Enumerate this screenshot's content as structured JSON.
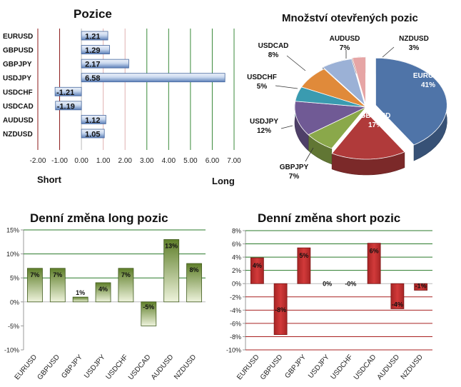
{
  "chart_data": [
    {
      "id": "pozice",
      "type": "bar",
      "orientation": "horizontal",
      "title": "Pozice",
      "categories": [
        "EURUSD",
        "GBPUSD",
        "GBPJPY",
        "USDJPY",
        "USDCHF",
        "USDCAD",
        "AUDUSD",
        "NZDUSD"
      ],
      "values": [
        1.21,
        1.29,
        2.17,
        6.58,
        -1.21,
        -1.19,
        1.12,
        1.05
      ],
      "data_labels": [
        "1.21",
        "1.29",
        "2.17",
        "6.58",
        "-1.21",
        "-1.19",
        "1.12",
        "1.05"
      ],
      "xlim": [
        -2,
        7
      ],
      "xticks": [
        "-2.00",
        "-1.00",
        "0.00",
        "1.00",
        "2.00",
        "3.00",
        "4.00",
        "5.00",
        "6.00",
        "7.00"
      ],
      "short_label": "Short",
      "long_label": "Long",
      "grid": "vertical",
      "colors": {
        "bar": "#5b7fb8",
        "bar_light": "#eef3fa",
        "neg_grid": "#8b1a1a",
        "pos_grid": "#3a8a3a",
        "light_grid": "#e0b0b0"
      }
    },
    {
      "id": "mnozstvi",
      "type": "pie",
      "title": "Množství otevřených pozic",
      "slices": [
        {
          "label": "EURUSD",
          "pct": "41%",
          "value": 41,
          "color": "#4f74a8"
        },
        {
          "label": "GBPUSD",
          "pct": "17%",
          "value": 17,
          "color": "#b03a3a"
        },
        {
          "label": "GBPJPY",
          "pct": "7%",
          "value": 7,
          "color": "#8aa84a"
        },
        {
          "label": "USDJPY",
          "pct": "12%",
          "value": 12,
          "color": "#705a95"
        },
        {
          "label": "USDCHF",
          "pct": "5%",
          "value": 5,
          "color": "#3a9bb0"
        },
        {
          "label": "USDCAD",
          "pct": "8%",
          "value": 8,
          "color": "#e08a3a"
        },
        {
          "label": "AUDUSD",
          "pct": "7%",
          "value": 7,
          "color": "#9bb1d6"
        },
        {
          "label": "NZDUSD",
          "pct": "3%",
          "value": 3,
          "color": "#e6a5a5"
        }
      ]
    },
    {
      "id": "long",
      "type": "bar",
      "title": "Denní změna long pozic",
      "categories": [
        "EURUSD",
        "GBPUSD",
        "GBPJPY",
        "USDJPY",
        "USDCHF",
        "USDCAD",
        "AUDUSD",
        "NZDUSD"
      ],
      "values": [
        7,
        7,
        1,
        4,
        7,
        -5,
        13,
        8
      ],
      "data_labels": [
        "7%",
        "7%",
        "1%",
        "4%",
        "7%",
        "-5%",
        "13%",
        "8%"
      ],
      "ylim": [
        -10,
        15
      ],
      "yticks": [
        "15%",
        "10%",
        "5%",
        "0%",
        "-5%",
        "-10%"
      ],
      "ytick_values": [
        15,
        10,
        5,
        0,
        -5,
        -10
      ],
      "grid": "horizontal",
      "colors": {
        "bar_dark": "#5f7f2a",
        "bar_light": "#eef3dc",
        "grid": "#2a7a2a"
      }
    },
    {
      "id": "short",
      "type": "bar",
      "title": "Denní změna short pozic",
      "categories": [
        "EURUSD",
        "GBPUSD",
        "GBPJPY",
        "USDJPY",
        "USDCHF",
        "USDCAD",
        "AUDUSD",
        "NZDUSD"
      ],
      "values": [
        4,
        -8,
        5,
        0,
        0,
        6,
        -4,
        -1
      ],
      "plot_values": [
        3.9,
        -7.7,
        5.4,
        0,
        0,
        6.1,
        -3.8,
        -1.0
      ],
      "data_labels": [
        "4%",
        "-8%",
        "5%",
        "0%",
        "-0%",
        "6%",
        "-4%",
        "-1%"
      ],
      "ylim": [
        -10,
        8
      ],
      "yticks": [
        "8%",
        "6%",
        "4%",
        "2%",
        "0%",
        "-2%",
        "-4%",
        "-6%",
        "-8%",
        "-10%"
      ],
      "ytick_values": [
        8,
        6,
        4,
        2,
        0,
        -2,
        -4,
        -6,
        -8,
        -10
      ],
      "grid": "horizontal",
      "colors": {
        "bar": "#d23a3a",
        "bar_dark": "#a82525",
        "grid_pos": "#2a7a2a",
        "grid_neg": "#a82020"
      }
    }
  ]
}
